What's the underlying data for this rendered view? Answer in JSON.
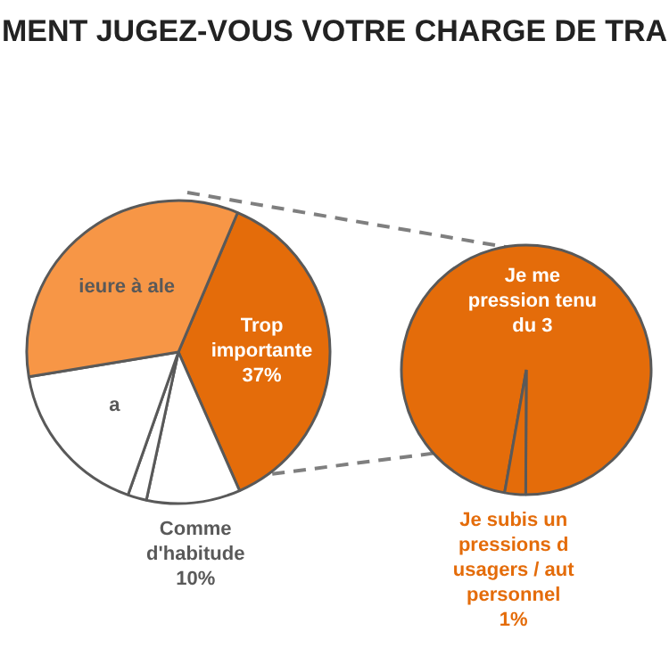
{
  "chart_data": [
    {
      "type": "pie",
      "title": "MENT JUGEZ-VOUS VOTRE CHARGE DE TRA",
      "categories": [
        "Trop importante",
        "Comme d'habitude",
        null,
        "a",
        "ieure à ale"
      ],
      "values": [
        37,
        10,
        2,
        17,
        34
      ],
      "colors": [
        "#e46c0a",
        "#ffffff",
        "#ffffff",
        "#ffffff",
        "#f79646"
      ],
      "value_labels": [
        "37%",
        "10%",
        null,
        null,
        null
      ]
    },
    {
      "type": "pie",
      "categories": [
        "Je me pression tenu du 3",
        "Je subis un pressions d usagers / aut personnel"
      ],
      "values": [
        36,
        1
      ],
      "colors": [
        "#e46c0a",
        "#e46c0a"
      ],
      "value_labels": [
        null,
        "1%"
      ]
    }
  ]
}
